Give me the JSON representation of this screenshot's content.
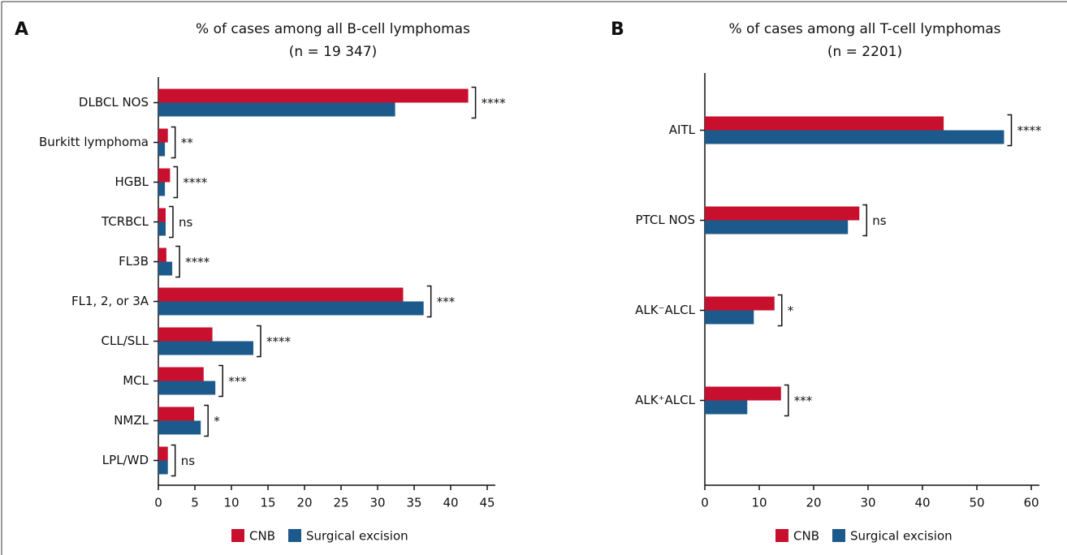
{
  "chart_data": [
    {
      "type": "bar",
      "orientation": "horizontal",
      "panel_label": "A",
      "title": "% of cases among all B-cell lymphomas",
      "subtitle": "(n = 19 347)",
      "categories": [
        "DLBCL NOS",
        "Burkitt lymphoma",
        "HGBL",
        "TCRBCL",
        "FL3B",
        "FL1, 2, or 3A",
        "CLL/SLL",
        "MCL",
        "NMZL",
        "LPL/WD"
      ],
      "series": [
        {
          "name": "CNB",
          "color": "#c8102e",
          "values": [
            42.4,
            1.3,
            1.6,
            1.0,
            1.1,
            33.5,
            7.4,
            6.2,
            4.9,
            1.3
          ]
        },
        {
          "name": "Surgical excision",
          "color": "#1d5a8c",
          "values": [
            32.4,
            0.9,
            0.9,
            1.0,
            1.9,
            36.3,
            13.0,
            7.8,
            5.8,
            1.3
          ]
        }
      ],
      "annotations": [
        "****",
        "**",
        "****",
        "ns",
        "****",
        "***",
        "****",
        "***",
        "*",
        "ns"
      ],
      "xlim": [
        0,
        45
      ],
      "xticks": [
        0,
        5,
        10,
        15,
        20,
        25,
        30,
        35,
        40,
        45
      ]
    },
    {
      "type": "bar",
      "orientation": "horizontal",
      "panel_label": "B",
      "title": "% of cases among all T-cell lymphomas",
      "subtitle": "(n = 2201)",
      "categories": [
        "AITL",
        "PTCL NOS",
        "ALK⁻ALCL",
        "ALK⁺ALCL"
      ],
      "series": [
        {
          "name": "CNB",
          "color": "#c8102e",
          "values": [
            43.9,
            28.4,
            12.8,
            14.0
          ]
        },
        {
          "name": "Surgical excision",
          "color": "#1d5a8c",
          "values": [
            55.0,
            26.3,
            9.0,
            7.8
          ]
        }
      ],
      "annotations": [
        "****",
        "ns",
        "*",
        "***"
      ],
      "xlim": [
        0,
        60
      ],
      "xticks": [
        0,
        10,
        20,
        30,
        40,
        50,
        60
      ]
    }
  ]
}
